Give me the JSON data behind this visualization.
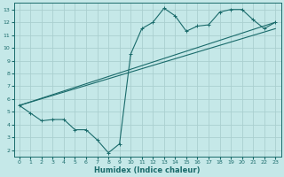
{
  "title": "",
  "xlabel": "Humidex (Indice chaleur)",
  "background_color": "#c5e8e8",
  "grid_color": "#aacfcf",
  "line_color": "#1a6b6b",
  "xlim": [
    -0.5,
    23.5
  ],
  "ylim": [
    1.5,
    13.5
  ],
  "xticks": [
    0,
    1,
    2,
    3,
    4,
    5,
    6,
    7,
    8,
    9,
    10,
    11,
    12,
    13,
    14,
    15,
    16,
    17,
    18,
    19,
    20,
    21,
    22,
    23
  ],
  "yticks": [
    2,
    3,
    4,
    5,
    6,
    7,
    8,
    9,
    10,
    11,
    12,
    13
  ],
  "line1_x": [
    0,
    1,
    2,
    3,
    4,
    5,
    6,
    7,
    8,
    9,
    10,
    11,
    12,
    13,
    14,
    15,
    16,
    17,
    18,
    19,
    20,
    21,
    22,
    23
  ],
  "line1_y": [
    5.5,
    4.9,
    4.3,
    4.4,
    4.4,
    3.6,
    3.6,
    2.8,
    1.8,
    2.5,
    9.5,
    11.5,
    12.0,
    13.1,
    12.5,
    11.3,
    11.7,
    11.8,
    12.8,
    13.0,
    13.0,
    12.2,
    11.5,
    12.0
  ],
  "line2_x": [
    0,
    23
  ],
  "line2_y": [
    5.5,
    12.0
  ],
  "line3_x": [
    0,
    23
  ],
  "line3_y": [
    5.5,
    11.5
  ]
}
